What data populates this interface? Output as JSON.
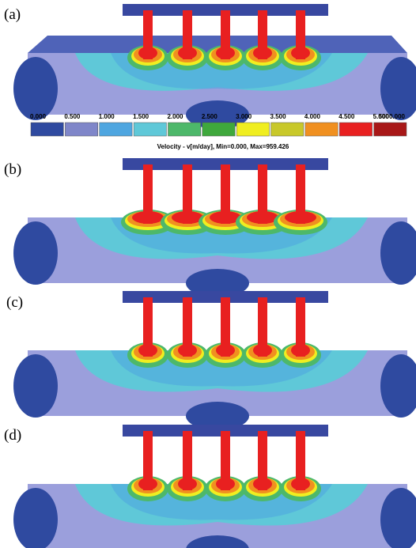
{
  "panels": [
    {
      "label": "(a)"
    },
    {
      "label": "(b)"
    },
    {
      "label": "(c)"
    },
    {
      "label": "(d)"
    }
  ],
  "legend": {
    "labels": [
      "0.000",
      "0.500",
      "1.000",
      "1.500",
      "2.000",
      "2.500",
      "3.000",
      "3.500",
      "4.000",
      "4.500",
      "5.000",
      "5000.000"
    ],
    "colors": [
      "#2f4aa0",
      "#7f86c9",
      "#4fa6e0",
      "#5fc8d8",
      "#4db86a",
      "#3fa83c",
      "#f0ee20",
      "#c8c82a",
      "#f09020",
      "#e82020",
      "#a81818"
    ]
  },
  "caption": "Velocity  - v[m/day], Min=0.000, Max=959.426"
}
